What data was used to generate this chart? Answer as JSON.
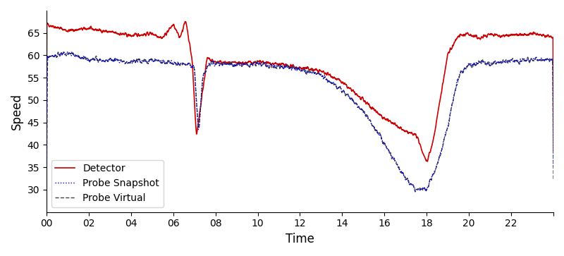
{
  "title": "",
  "xlabel": "Time",
  "ylabel": "Speed",
  "xlim": [
    0,
    24
  ],
  "ylim": [
    25,
    70
  ],
  "xticks": [
    0,
    2,
    4,
    6,
    8,
    10,
    12,
    14,
    16,
    18,
    20,
    22,
    24
  ],
  "xticklabels": [
    "00",
    "02",
    "04",
    "06",
    "08",
    "10",
    "12",
    "14",
    "16",
    "18",
    "20",
    "22",
    ""
  ],
  "yticks": [
    30,
    35,
    40,
    45,
    50,
    55,
    60,
    65
  ],
  "detector_color": "#cc0000",
  "probe_snap_color": "#0000cc",
  "probe_virt_color": "#444444",
  "legend_loc": "lower left",
  "figsize": [
    8.0,
    3.63
  ],
  "dpi": 100
}
